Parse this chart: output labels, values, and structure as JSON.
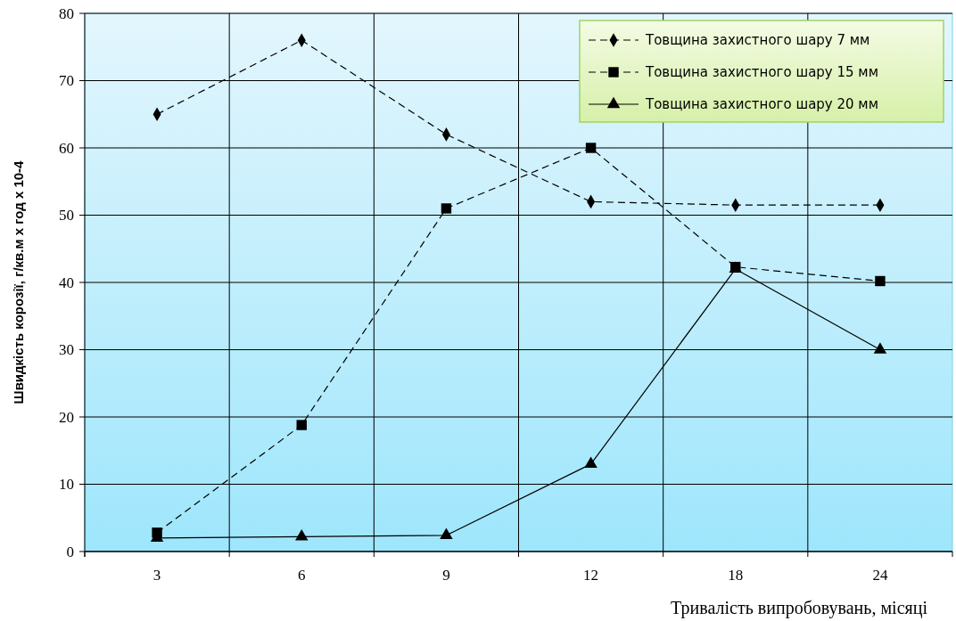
{
  "chart_data": {
    "type": "line",
    "xlabel": "Тривалість  випробовувань, місяці",
    "ylabel": "Швидкість корозії, г/кв.м х год х 10-4",
    "categories": [
      "3",
      "6",
      "9",
      "12",
      "18",
      "24"
    ],
    "series": [
      {
        "name": "Товщина захистного шару 7 мм",
        "color": "#000000",
        "marker": "diamond",
        "line_style": "dashed",
        "values": [
          65,
          76,
          62,
          52,
          51.5,
          51.5
        ]
      },
      {
        "name": "Товщина захистного шару 15 мм",
        "color": "#000000",
        "marker": "square",
        "line_style": "dashed",
        "values": [
          2.8,
          18.8,
          51,
          60,
          42.3,
          40.2
        ]
      },
      {
        "name": "Товщина захистного шару 20 мм",
        "color": "#000000",
        "marker": "triangle",
        "line_style": "solid",
        "values": [
          2,
          2.2,
          2.4,
          13,
          42,
          30
        ]
      }
    ],
    "ylim": [
      0,
      80
    ],
    "yticks": [
      0,
      10,
      20,
      30,
      40,
      50,
      60,
      70,
      80
    ],
    "grid": true,
    "legend": "top right"
  }
}
